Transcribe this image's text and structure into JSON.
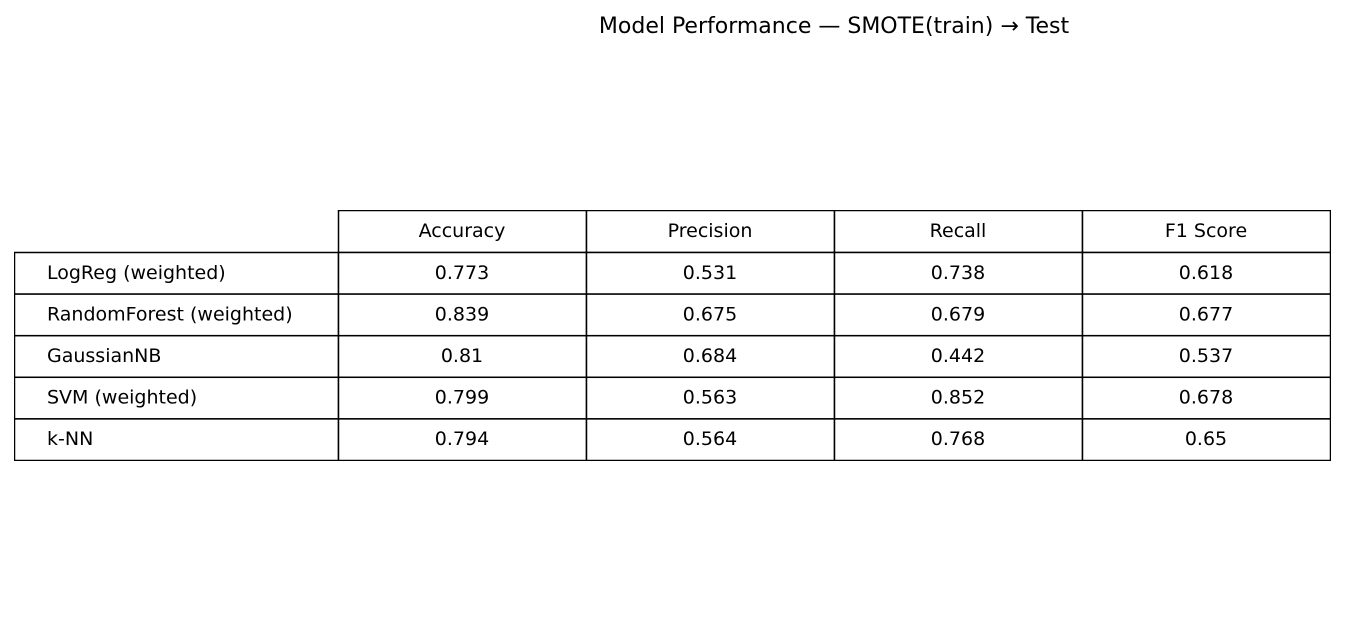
{
  "chart_data": {
    "type": "table",
    "title": "Model Performance — SMOTE(train) → Test",
    "columns": [
      "Accuracy",
      "Precision",
      "Recall",
      "F1 Score"
    ],
    "rows": [
      {
        "label": "LogReg (weighted)",
        "values": [
          "0.773",
          "0.531",
          "0.738",
          "0.618"
        ]
      },
      {
        "label": "RandomForest (weighted)",
        "values": [
          "0.839",
          "0.675",
          "0.679",
          "0.677"
        ]
      },
      {
        "label": "GaussianNB",
        "values": [
          "0.81",
          "0.684",
          "0.442",
          "0.537"
        ]
      },
      {
        "label": "SVM (weighted)",
        "values": [
          "0.799",
          "0.563",
          "0.852",
          "0.678"
        ]
      },
      {
        "label": "k-NN",
        "values": [
          "0.794",
          "0.564",
          "0.768",
          "0.65"
        ]
      }
    ]
  }
}
